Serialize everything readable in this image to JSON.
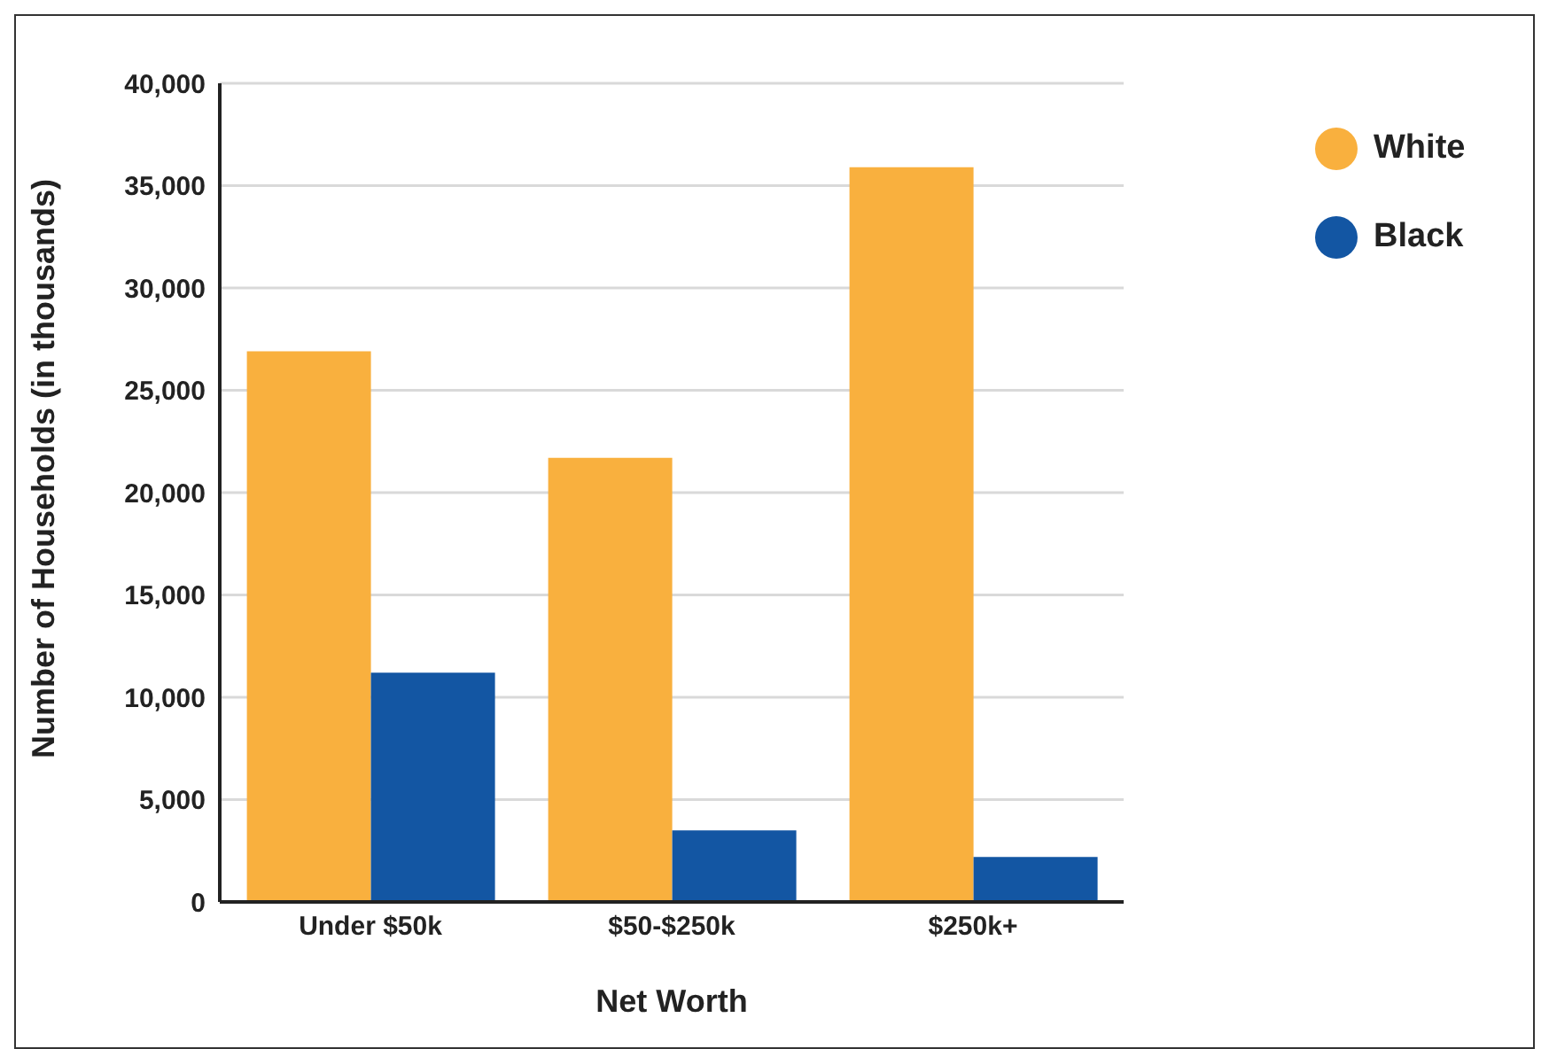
{
  "chart_data": {
    "type": "bar",
    "xlabel": "Net Worth",
    "ylabel": "Number of Households (in thousands)",
    "categories": [
      "Under $50k",
      "$50-$250k",
      "$250k+"
    ],
    "series": [
      {
        "name": "White",
        "color": "#f9b03e",
        "values": [
          26900,
          21700,
          35900
        ]
      },
      {
        "name": "Black",
        "color": "#1356a3",
        "values": [
          11200,
          3500,
          2200
        ]
      }
    ],
    "ylim": [
      0,
      40000
    ],
    "yticks": [
      0,
      {
        "value": 5000,
        "label": "5,000"
      },
      {
        "value": 10000,
        "label": "10,000"
      },
      {
        "value": 15000,
        "label": "15,000"
      },
      {
        "value": 20000,
        "label": "20,000"
      },
      {
        "value": 25000,
        "label": "25,000"
      },
      {
        "value": 30000,
        "label": "30,000"
      },
      {
        "value": 35000,
        "label": "35,000"
      },
      {
        "value": 40000,
        "label": "40,000"
      }
    ],
    "grid": "y",
    "legend": "top right"
  }
}
